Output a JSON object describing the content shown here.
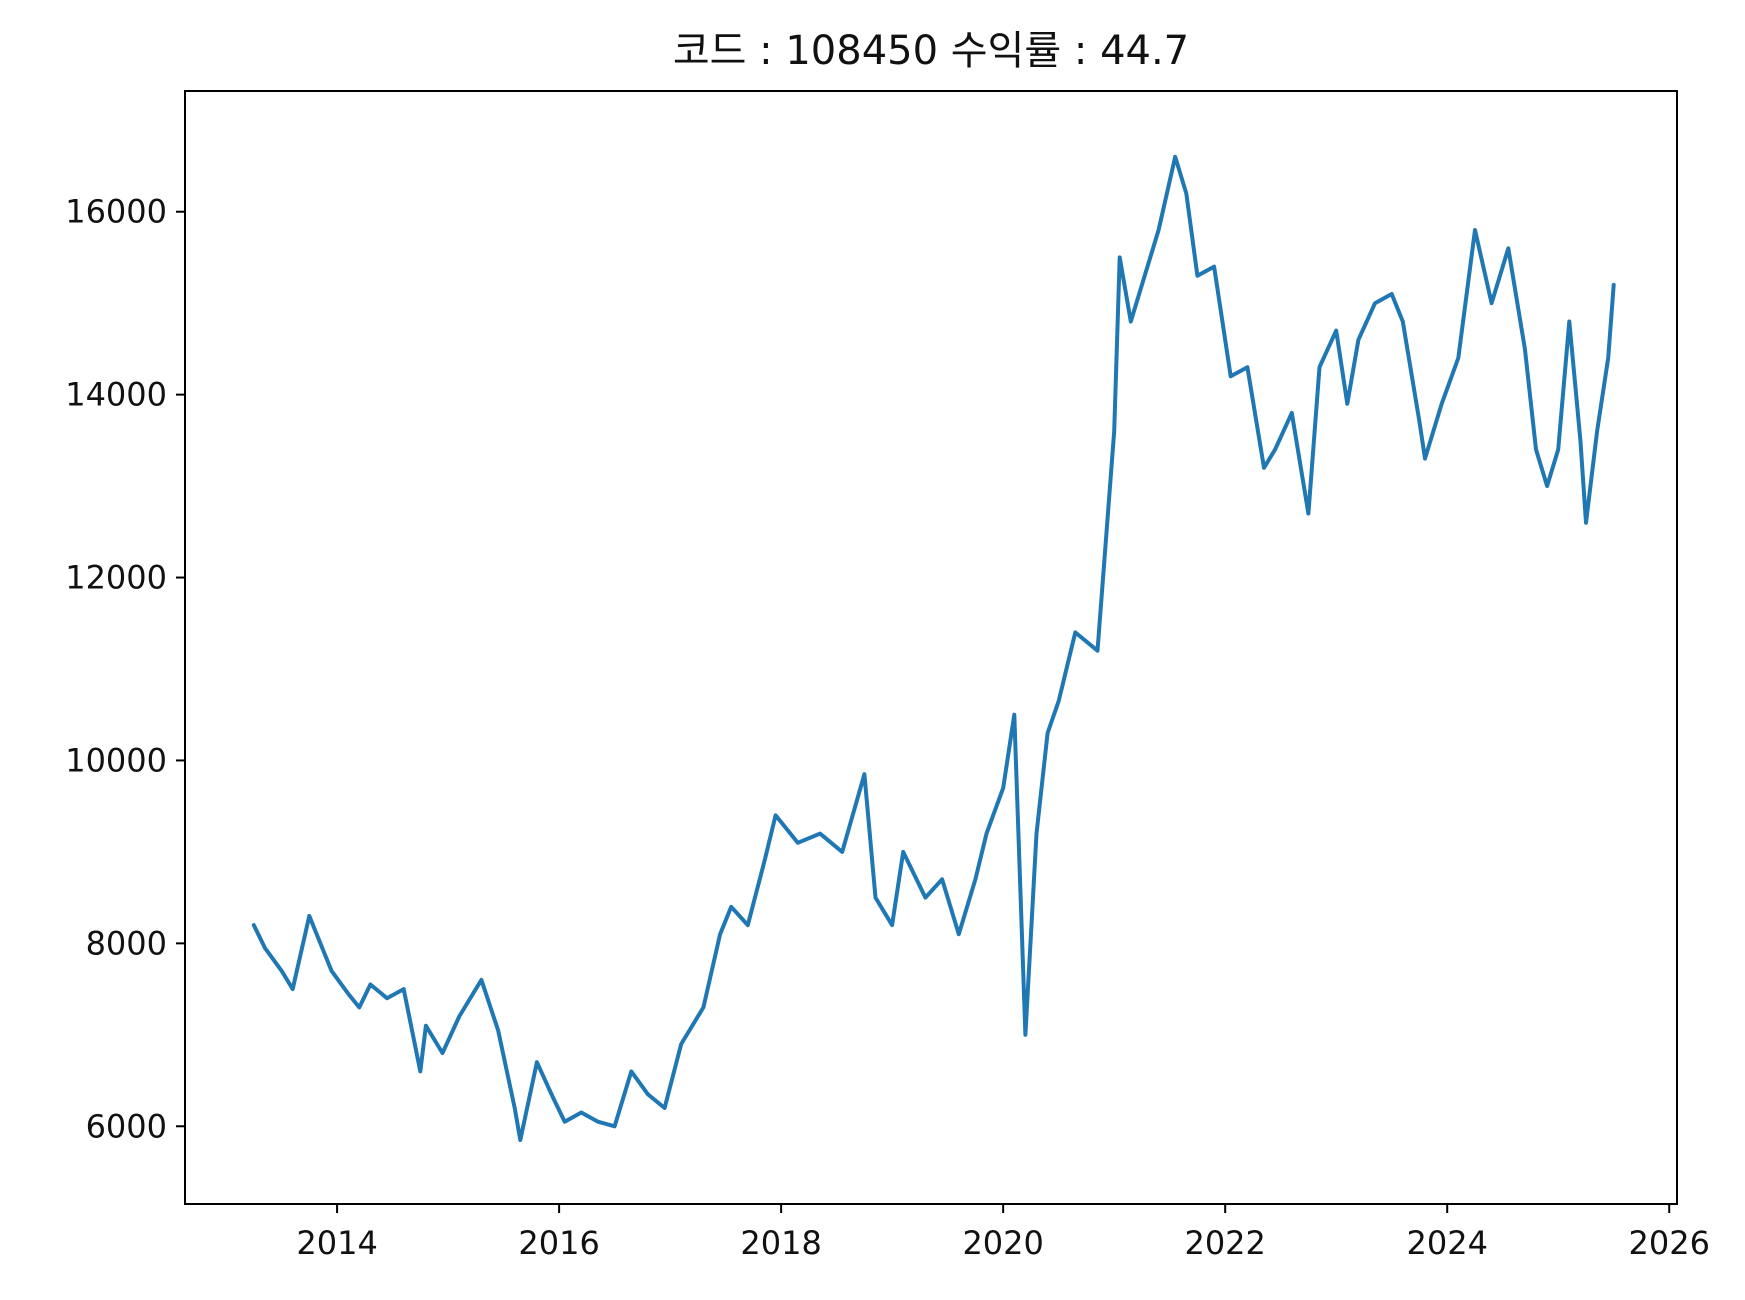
{
  "chart_data": {
    "type": "line",
    "title": "코드 : 108450 수익률 : 44.7",
    "xlabel": "",
    "ylabel": "",
    "xlim": [
      2012.63,
      2026.07
    ],
    "ylim": [
      5150,
      17320
    ],
    "grid": false,
    "colors": {
      "line": "#1f77b4"
    },
    "x_ticks": [
      2014,
      2016,
      2018,
      2020,
      2022,
      2024,
      2026
    ],
    "x_tick_labels": [
      "2014",
      "2016",
      "2018",
      "2020",
      "2022",
      "2024",
      "2026"
    ],
    "y_ticks": [
      6000,
      8000,
      10000,
      12000,
      14000,
      16000
    ],
    "y_tick_labels": [
      "6000",
      "8000",
      "10000",
      "12000",
      "14000",
      "16000"
    ],
    "series": [
      {
        "x": [
          2013.25,
          2013.35,
          2013.5,
          2013.6,
          2013.75,
          2013.85,
          2013.95,
          2014.1,
          2014.2,
          2014.3,
          2014.45,
          2014.6,
          2014.75,
          2014.8,
          2014.95,
          2015.1,
          2015.3,
          2015.45,
          2015.6,
          2015.65,
          2015.8,
          2015.95,
          2016.05,
          2016.2,
          2016.35,
          2016.5,
          2016.65,
          2016.8,
          2016.95,
          2017.1,
          2017.3,
          2017.45,
          2017.55,
          2017.7,
          2017.85,
          2017.95,
          2018.15,
          2018.35,
          2018.55,
          2018.75,
          2018.85,
          2019.0,
          2019.1,
          2019.3,
          2019.45,
          2019.6,
          2019.75,
          2019.85,
          2020.0,
          2020.1,
          2020.2,
          2020.3,
          2020.4,
          2020.5,
          2020.65,
          2020.85,
          2021.0,
          2021.05,
          2021.15,
          2021.25,
          2021.4,
          2021.55,
          2021.65,
          2021.75,
          2021.9,
          2022.05,
          2022.2,
          2022.35,
          2022.45,
          2022.6,
          2022.75,
          2022.85,
          2023.0,
          2023.1,
          2023.2,
          2023.35,
          2023.5,
          2023.6,
          2023.75,
          2023.8,
          2023.95,
          2024.1,
          2024.25,
          2024.4,
          2024.55,
          2024.7,
          2024.8,
          2024.9,
          2025.0,
          2025.1,
          2025.2,
          2025.25,
          2025.35,
          2025.45,
          2025.5
        ],
        "y": [
          8200,
          7950,
          7700,
          7500,
          8300,
          8000,
          7700,
          7450,
          7300,
          7550,
          7400,
          7500,
          6600,
          7100,
          6800,
          7200,
          7600,
          7050,
          6200,
          5850,
          6700,
          6300,
          6050,
          6150,
          6050,
          6000,
          6600,
          6350,
          6200,
          6900,
          7300,
          8100,
          8400,
          8200,
          8900,
          9400,
          9100,
          9200,
          9000,
          9850,
          8500,
          8200,
          9000,
          8500,
          8700,
          8100,
          8700,
          9200,
          9700,
          10500,
          7000,
          9200,
          10300,
          10650,
          11400,
          11200,
          13600,
          15500,
          14800,
          15200,
          15800,
          16600,
          16200,
          15300,
          15400,
          14200,
          14300,
          13200,
          13400,
          13800,
          12700,
          14300,
          14700,
          13900,
          14600,
          15000,
          15100,
          14800,
          13700,
          13300,
          13900,
          14400,
          15800,
          15000,
          15600,
          14500,
          13400,
          13000,
          13400,
          14800,
          13500,
          12600,
          13600,
          14400,
          15200
        ]
      }
    ]
  }
}
